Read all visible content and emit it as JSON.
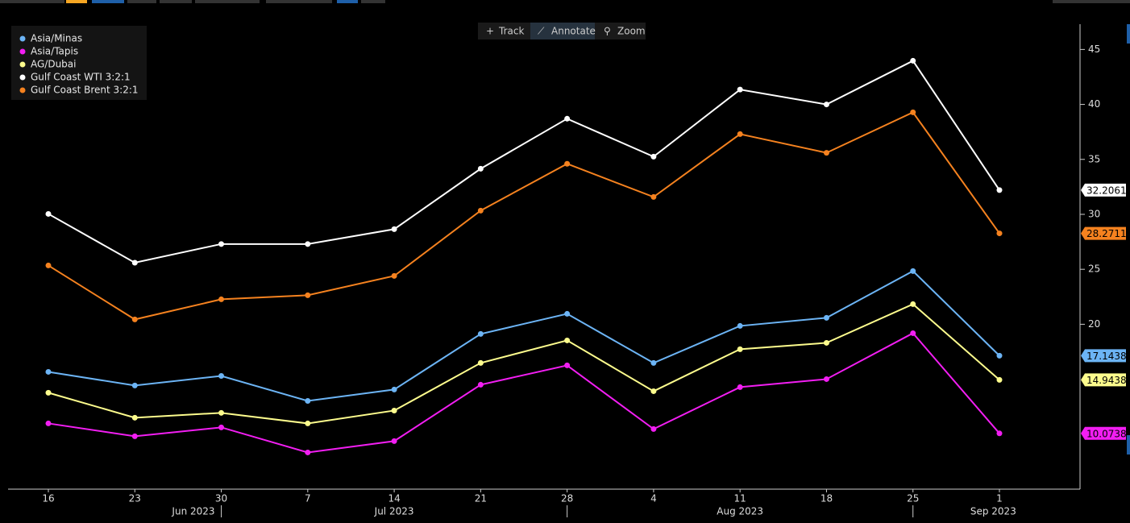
{
  "toolbar": [
    "Track",
    "Annotate",
    "Zoom"
  ],
  "chart_data": {
    "type": "line",
    "categories": [
      "16",
      "23",
      "30",
      "7",
      "14",
      "21",
      "28",
      "4",
      "11",
      "18",
      "25",
      "1"
    ],
    "month_labels": [
      "Jun 2023",
      "Jul 2023",
      "Aug 2023",
      "Sep 2023"
    ],
    "ylim": [
      5,
      47.3
    ],
    "yticks": [
      20,
      25,
      30,
      35,
      40,
      45
    ],
    "legend": "top-left",
    "series": [
      {
        "name": "Asia/Minas",
        "color": "#6cb4f5",
        "values": [
          15.67,
          14.43,
          15.3,
          13.03,
          14.06,
          19.12,
          20.95,
          16.48,
          19.85,
          20.59,
          24.84,
          17.1438
        ]
      },
      {
        "name": "Asia/Tapis",
        "color": "#f21ef2",
        "values": [
          10.98,
          9.81,
          10.62,
          8.34,
          9.37,
          14.5,
          16.26,
          10.47,
          14.28,
          15.01,
          19.19,
          10.0738
        ]
      },
      {
        "name": "AG/Dubai",
        "color": "#fdfc8d",
        "values": [
          13.77,
          11.5,
          11.94,
          10.98,
          12.15,
          16.48,
          18.53,
          13.91,
          17.73,
          18.31,
          21.83,
          14.9438
        ]
      },
      {
        "name": "Gulf Coast WTI 3:2:1",
        "color": "#ffffff",
        "values": [
          30.04,
          25.6,
          27.3,
          27.3,
          28.65,
          34.15,
          38.7,
          35.25,
          41.35,
          40.0,
          43.97,
          32.2061
        ]
      },
      {
        "name": "Gulf Coast Brent 3:2:1",
        "color": "#f5821f",
        "values": [
          25.35,
          20.44,
          22.27,
          22.64,
          24.4,
          30.34,
          34.6,
          31.58,
          37.3,
          35.6,
          39.28,
          28.2711
        ]
      }
    ]
  }
}
